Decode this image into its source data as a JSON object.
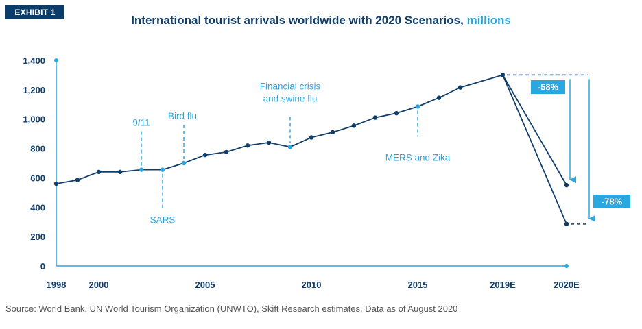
{
  "exhibit_label": "EXHIBIT 1",
  "title_main": "International tourist arrivals worldwide with 2020 Scenarios, ",
  "title_unit": "millions",
  "source": "Source: World Bank, UN World Tourism Organization (UNWTO), Skift Research estimates. Data as of August 2020",
  "colors": {
    "navy": "#123e6b",
    "accent": "#2aa7df",
    "dot": "#0f3d68"
  },
  "chart_data": {
    "type": "line",
    "title": "International tourist arrivals worldwide with 2020 Scenarios, millions",
    "ylim": [
      0,
      1400
    ],
    "yticks": [
      0,
      200,
      400,
      600,
      800,
      1000,
      1200,
      1400
    ],
    "ytick_labels": [
      "0",
      "200",
      "400",
      "600",
      "800",
      "1,000",
      "1,200",
      "1,400"
    ],
    "xticks": [
      {
        "x": 1998,
        "label": "1998"
      },
      {
        "x": 2000,
        "label": "2000"
      },
      {
        "x": 2005,
        "label": "2005"
      },
      {
        "x": 2010,
        "label": "2010"
      },
      {
        "x": 2015,
        "label": "2015"
      },
      {
        "x": 2019,
        "label": "2019E"
      },
      {
        "x": 2022,
        "label": "2020E"
      }
    ],
    "series": [
      {
        "points": [
          {
            "x": 1998,
            "y": 560
          },
          {
            "x": 1999,
            "y": 585
          },
          {
            "x": 2000,
            "y": 640
          },
          {
            "x": 2001,
            "y": 640
          },
          {
            "x": 2002,
            "y": 655
          },
          {
            "x": 2003,
            "y": 655
          },
          {
            "x": 2004,
            "y": 700
          },
          {
            "x": 2005,
            "y": 755
          },
          {
            "x": 2006,
            "y": 775
          },
          {
            "x": 2007,
            "y": 820
          },
          {
            "x": 2008,
            "y": 840
          },
          {
            "x": 2009,
            "y": 810
          },
          {
            "x": 2010,
            "y": 875
          },
          {
            "x": 2011,
            "y": 910
          },
          {
            "x": 2012,
            "y": 955
          },
          {
            "x": 2013,
            "y": 1010
          },
          {
            "x": 2014,
            "y": 1040
          },
          {
            "x": 2015,
            "y": 1085
          },
          {
            "x": 2016,
            "y": 1145
          },
          {
            "x": 2017,
            "y": 1215
          },
          {
            "x": 2019,
            "y": 1300
          }
        ]
      },
      {
        "points": [
          {
            "x": 2019,
            "y": 1300
          },
          {
            "x": 2022,
            "y": 550
          }
        ]
      },
      {
        "points": [
          {
            "x": 2019,
            "y": 1300
          },
          {
            "x": 2022,
            "y": 285
          }
        ]
      }
    ],
    "events": [
      {
        "label": "9/11",
        "x": 2002,
        "y": 655,
        "side": "above"
      },
      {
        "label": "SARS",
        "x": 2003,
        "y": 655,
        "side": "below"
      },
      {
        "label": "Bird flu",
        "x": 2004,
        "y": 700,
        "side": "above"
      },
      {
        "label": "Financial crisis and swine flu",
        "lines": [
          "Financial crisis",
          "and swine flu"
        ],
        "x": 2009,
        "y": 810,
        "side": "above"
      },
      {
        "label": "MERS and Zika",
        "x": 2015,
        "y": 1085,
        "side": "below"
      }
    ],
    "scenarios": [
      {
        "label": "-58%",
        "from": 1300,
        "to": 550
      },
      {
        "label": "-78%",
        "from": 1300,
        "to": 285
      }
    ]
  }
}
